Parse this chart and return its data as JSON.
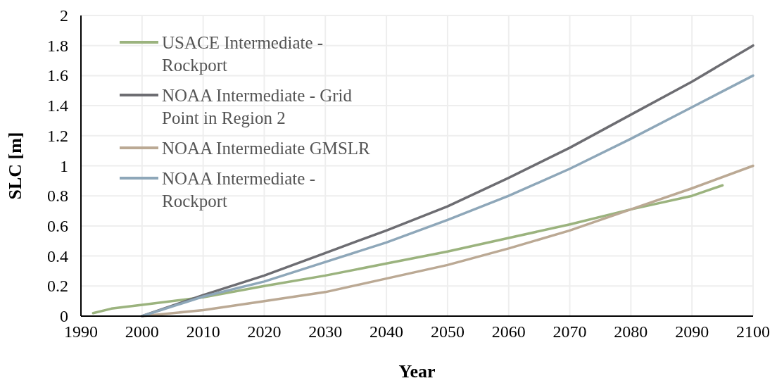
{
  "chart_data": {
    "type": "line",
    "xlabel": "Year",
    "ylabel": "SLC [m]",
    "xlim": [
      1990,
      2100
    ],
    "xticks": [
      1990,
      2000,
      2010,
      2020,
      2030,
      2040,
      2050,
      2060,
      2070,
      2080,
      2090,
      2100
    ],
    "ylim": [
      0,
      2
    ],
    "yticks": [
      0,
      {
        "value": 0.2,
        "label": "0.2"
      },
      {
        "value": 0.4,
        "label": "0.4"
      },
      {
        "value": 0.6,
        "label": "0.6"
      },
      {
        "value": 0.8,
        "label": "0.8"
      },
      1,
      {
        "value": 1.2,
        "label": "1.2"
      },
      {
        "value": 1.4,
        "label": "1.4"
      },
      {
        "value": 1.6,
        "label": "1.6"
      },
      {
        "value": 1.8,
        "label": "1.8"
      },
      2
    ],
    "grid": true,
    "legend": "top left",
    "marker": "none",
    "line_style": "solid",
    "series": [
      {
        "name": "USACE Intermediate - Rockport",
        "color": "#9bb37e",
        "x": [
          1992,
          1995,
          2000,
          2010,
          2020,
          2030,
          2040,
          2050,
          2060,
          2070,
          2080,
          2090,
          2095
        ],
        "values": [
          0.02,
          0.05,
          0.075,
          0.125,
          0.2,
          0.27,
          0.35,
          0.43,
          0.52,
          0.61,
          0.71,
          0.8,
          0.87
        ]
      },
      {
        "name": "NOAA Intermediate - Grid Point in Region 2",
        "color": "#6d6d72",
        "x": [
          2000,
          2010,
          2020,
          2030,
          2040,
          2050,
          2060,
          2070,
          2080,
          2090,
          2100
        ],
        "values": [
          0,
          0.14,
          0.27,
          0.42,
          0.57,
          0.73,
          0.92,
          1.12,
          1.34,
          1.56,
          1.8
        ]
      },
      {
        "name": "NOAA Intermediate GMSLR",
        "color": "#bba994",
        "x": [
          2000,
          2010,
          2020,
          2030,
          2040,
          2050,
          2060,
          2070,
          2080,
          2090,
          2100
        ],
        "values": [
          0,
          0.04,
          0.1,
          0.16,
          0.25,
          0.34,
          0.45,
          0.57,
          0.71,
          0.85,
          1.0
        ]
      },
      {
        "name": "NOAA Intermediate - Rockport",
        "color": "#8ea7b9",
        "x": [
          2000,
          2010,
          2020,
          2030,
          2040,
          2050,
          2060,
          2070,
          2080,
          2090,
          2100
        ],
        "values": [
          0,
          0.13,
          0.23,
          0.36,
          0.49,
          0.64,
          0.8,
          0.98,
          1.18,
          1.39,
          1.6
        ]
      }
    ]
  }
}
